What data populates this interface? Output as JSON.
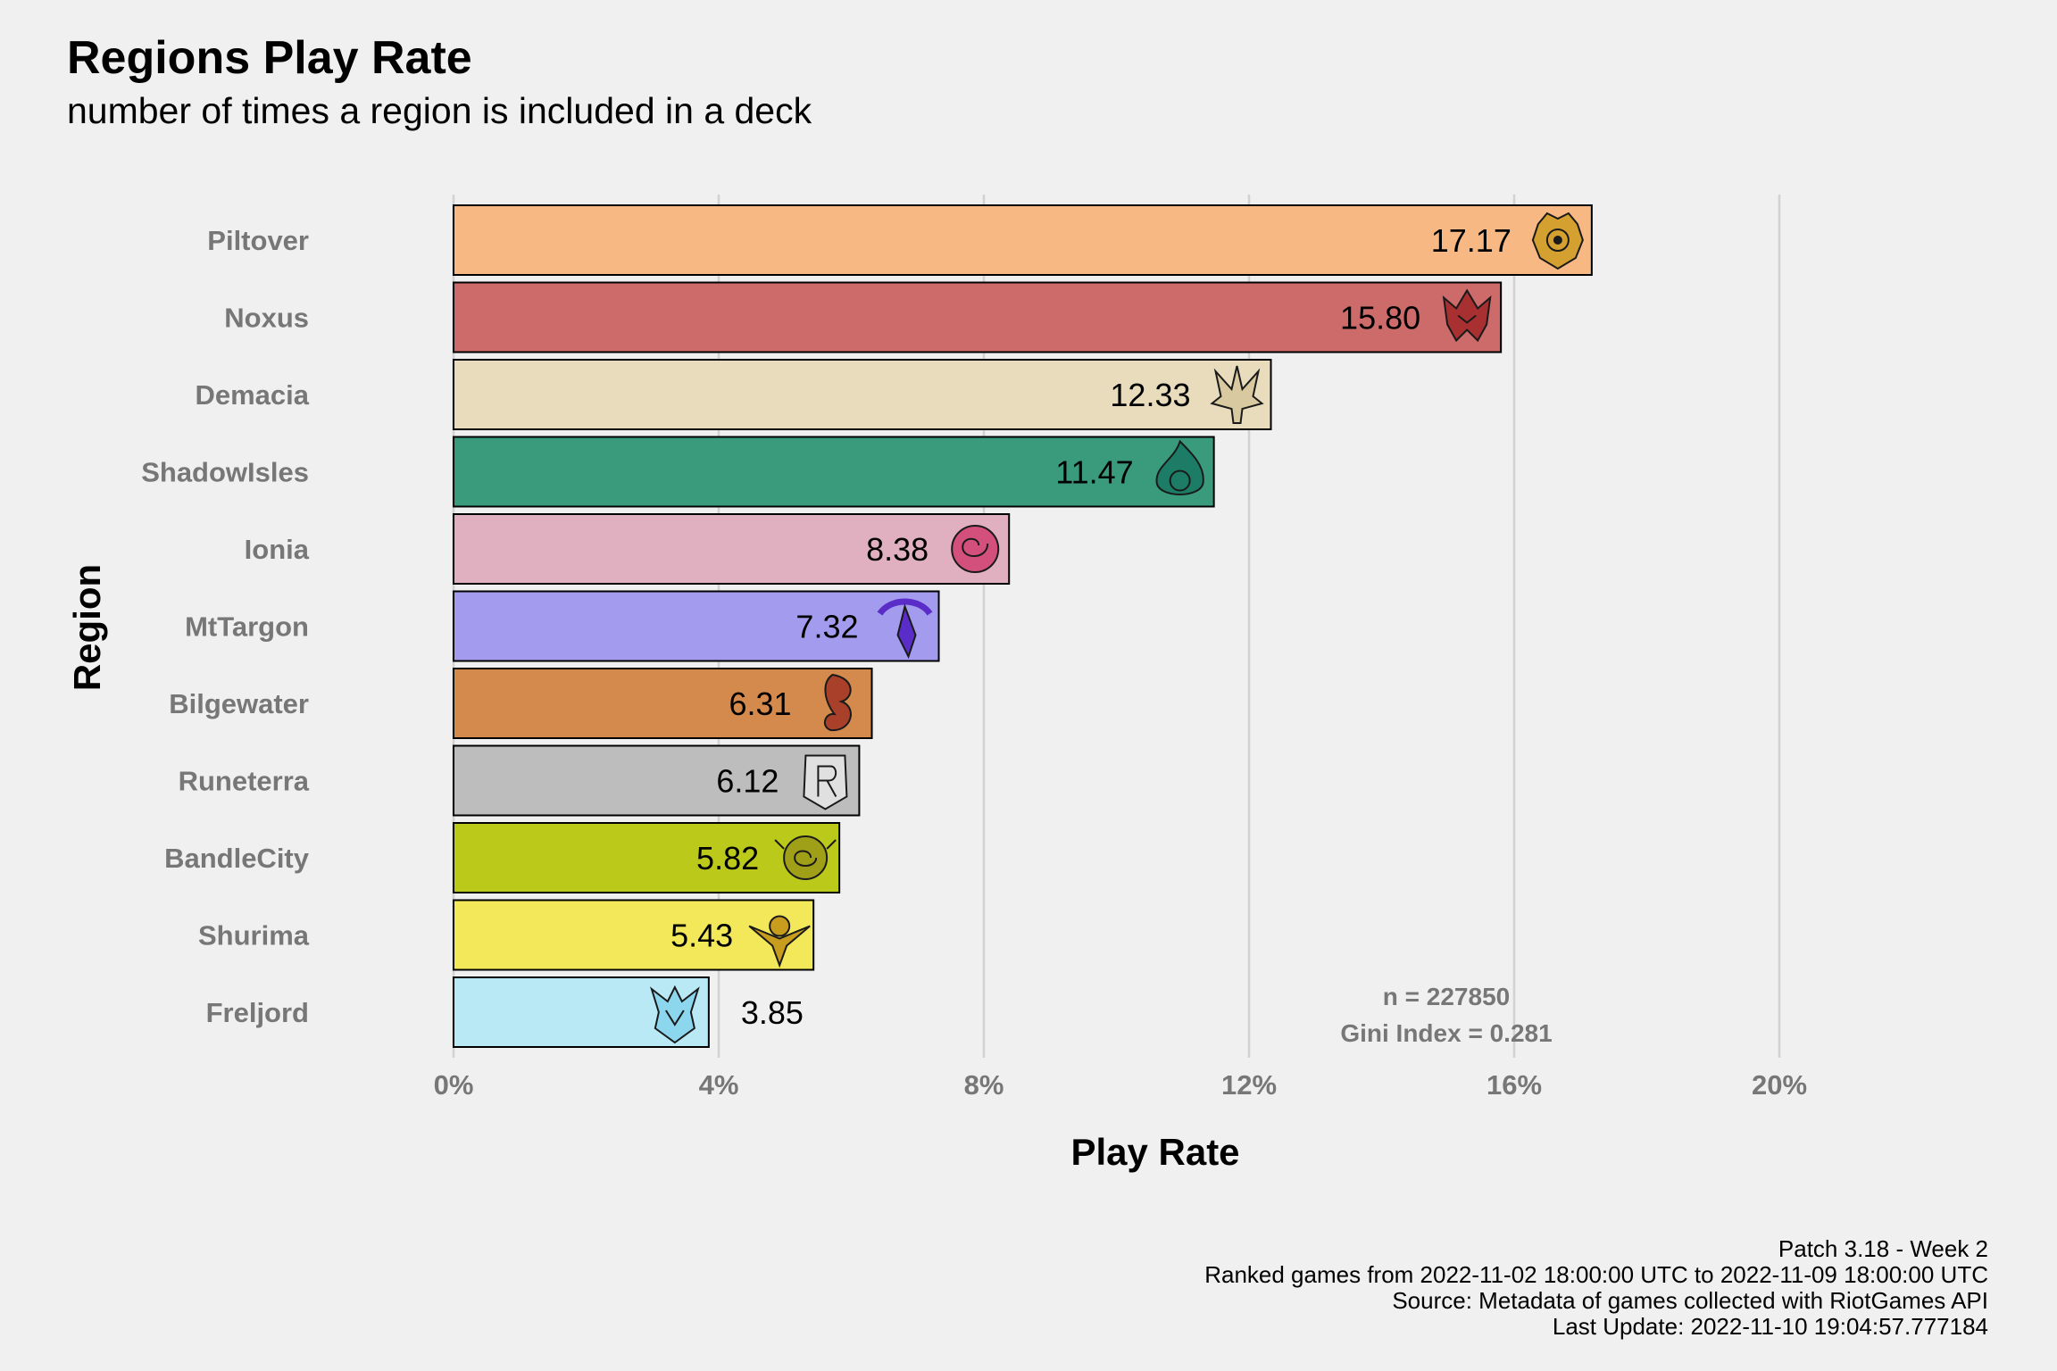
{
  "header": {
    "title": "Regions Play Rate",
    "subtitle": "number of times a region is included in a deck"
  },
  "annotation": {
    "n": "n = 227850",
    "gini": "Gini Index = 0.281"
  },
  "caption": [
    "Patch 3.18 - Week 2",
    "Ranked games from 2022-11-02 18:00:00 UTC to 2022-11-09 18:00:00 UTC",
    "Source: Metadata of games collected with RiotGames API",
    "Last Update: 2022-11-10 19:04:57.777184"
  ],
  "chart_data": {
    "type": "bar",
    "orientation": "horizontal",
    "title": "Regions Play Rate",
    "subtitle": "number of times a region is included in a deck",
    "xlabel": "Play Rate",
    "ylabel": "Region",
    "xlim": [
      0,
      20
    ],
    "x_ticks": [
      0,
      4,
      8,
      12,
      16,
      20
    ],
    "x_tick_labels": [
      "0%",
      "4%",
      "8%",
      "12%",
      "16%",
      "20%"
    ],
    "grid": "vertical major gridlines",
    "legend": "none",
    "categories": [
      "Piltover",
      "Noxus",
      "Demacia",
      "ShadowIsles",
      "Ionia",
      "MtTargon",
      "Bilgewater",
      "Runeterra",
      "BandleCity",
      "Shurima",
      "Freljord"
    ],
    "values": [
      17.17,
      15.8,
      12.33,
      11.47,
      8.38,
      7.32,
      6.31,
      6.12,
      5.82,
      5.43,
      3.85
    ],
    "value_labels": [
      "17.17",
      "15.80",
      "12.33",
      "11.47",
      "8.38",
      "7.32",
      "6.31",
      "6.12",
      "5.82",
      "5.43",
      "3.85"
    ],
    "colors": [
      "#f7b883",
      "#cd6b6b",
      "#e8dcbc",
      "#3a9b7c",
      "#e0b0c0",
      "#a39cee",
      "#d4894d",
      "#bdbdbd",
      "#bbc91b",
      "#f3e85a",
      "#bae9f6"
    ],
    "icon_colors": [
      "#d4a030",
      "#a83030",
      "#d8c9a0",
      "#1d7c66",
      "#d4507c",
      "#5a2cc8",
      "#a8402a",
      "#e0e0e0",
      "#a0a018",
      "#c89c1c",
      "#8cd6ee"
    ],
    "icons": [
      "piltover-icon",
      "noxus-icon",
      "demacia-icon",
      "shadow-isles-icon",
      "ionia-icon",
      "mt-targon-icon",
      "bilgewater-icon",
      "runeterra-icon",
      "bandle-city-icon",
      "shurima-icon",
      "freljord-icon"
    ]
  }
}
